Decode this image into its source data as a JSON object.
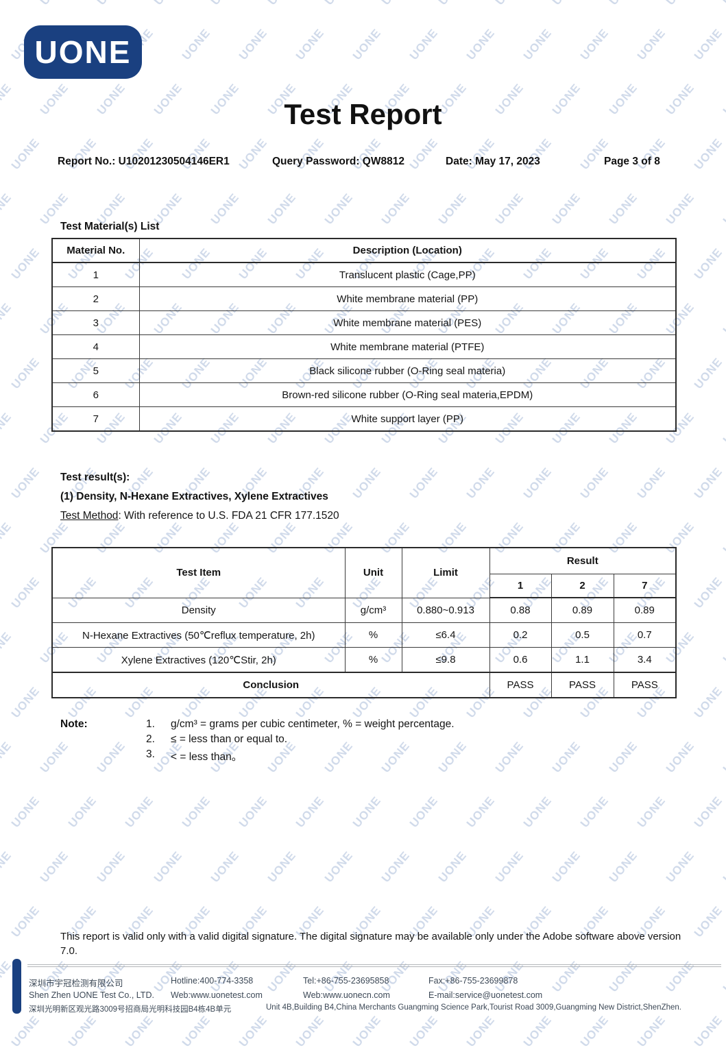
{
  "logo": {
    "text": "UONE"
  },
  "watermark": {
    "text": "UONE",
    "color": "rgba(170,188,216,0.55)"
  },
  "title": "Test Report",
  "header": {
    "report_no": "Report No.: U10201230504146ER1",
    "query_password": "Query Password: QW8812",
    "date": "Date: May 17, 2023",
    "page": "Page 3 of 8"
  },
  "materials": {
    "heading": "Test Material(s) List",
    "columns": {
      "no": "Material No.",
      "desc": "Description (Location)"
    },
    "rows": [
      {
        "no": "1",
        "desc": "Translucent plastic (Cage,PP)"
      },
      {
        "no": "2",
        "desc": "White membrane material (PP)"
      },
      {
        "no": "3",
        "desc": "White membrane material (PES)"
      },
      {
        "no": "4",
        "desc": "White membrane material (PTFE)"
      },
      {
        "no": "5",
        "desc": "Black silicone rubber (O-Ring seal materia)"
      },
      {
        "no": "6",
        "desc": "Brown-red silicone rubber (O-Ring seal materia,EPDM)"
      },
      {
        "no": "7",
        "desc": "White support layer (PP)"
      }
    ]
  },
  "results": {
    "heading": "Test result(s):",
    "subheading": "(1) Density, N-Hexane Extractives, Xylene Extractives",
    "method_label": "Test Method",
    "method_text": ": With reference to U.S. FDA 21 CFR 177.1520",
    "table": {
      "col_test_item": "Test Item",
      "col_unit": "Unit",
      "col_limit": "Limit",
      "col_result": "Result",
      "result_cols": {
        "c1": "1",
        "c2": "2",
        "c3": "7"
      },
      "rows": [
        {
          "item": "Density",
          "unit": "g/cm³",
          "limit": "0.880~0.913",
          "r1": "0.88",
          "r2": "0.89",
          "r7": "0.89"
        },
        {
          "item": "N-Hexane Extractives (50℃reflux temperature, 2h)",
          "unit": "%",
          "limit": "≤6.4",
          "r1": "0.2",
          "r2": "0.5",
          "r7": "0.7"
        },
        {
          "item": "Xylene Extractives (120℃Stir, 2h)",
          "unit": "%",
          "limit": "≤9.8",
          "r1": "0.6",
          "r2": "1.1",
          "r7": "3.4"
        }
      ],
      "conclusion_label": "Conclusion",
      "conclusion": {
        "r1": "PASS",
        "r2": "PASS",
        "r7": "PASS"
      }
    }
  },
  "note": {
    "label": "Note:",
    "items": [
      {
        "num": "1.",
        "text": "g/cm³ = grams per cubic centimeter, % = weight percentage."
      },
      {
        "num": "2.",
        "text": "≤ = less than or equal to."
      },
      {
        "num": "3.",
        "text": "< = less than。"
      }
    ]
  },
  "disclaimer": "This report is valid only with a valid digital signature. The digital signature may be available only under the Adobe software above version 7.0.",
  "footer": {
    "company_cn": "深圳市宇冠检测有限公司",
    "company_en": "Shen Zhen UONE Test Co., LTD.",
    "hotline": "Hotline:400-774-3358",
    "web1": "Web:www.uonetest.com",
    "tel": "Tel:+86-755-23695858",
    "web2": "Web:www.uonecn.com",
    "fax": "Fax:+86-755-23699878",
    "email": "E-mail:service@uonetest.com",
    "address_cn": "深圳光明新区观光路3009号招商局光明科技园B4栋4B单元",
    "address_en": "Unit 4B,Building B4,China Merchants Guangming Science Park,Tourist Road 3009,Guangming New District,ShenZhen."
  }
}
